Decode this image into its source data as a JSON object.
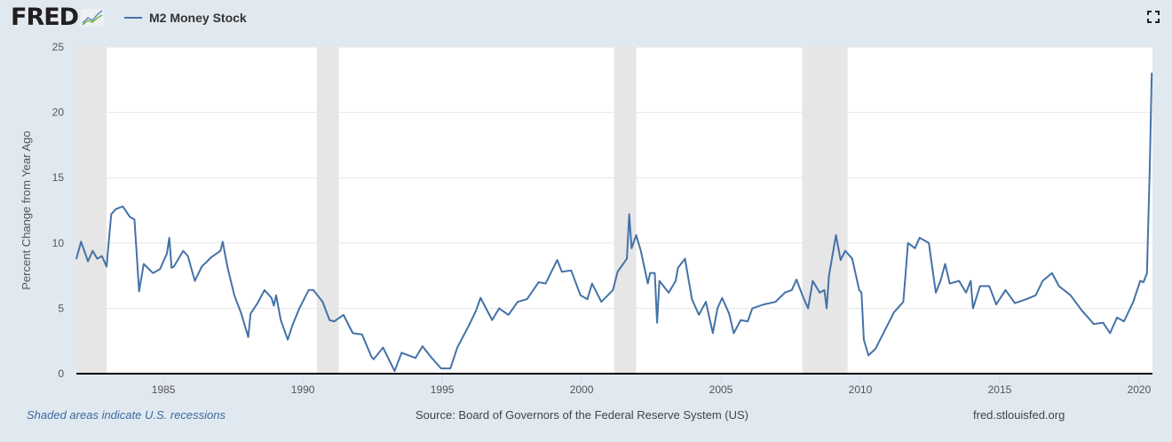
{
  "header": {
    "logo_text": "FRED",
    "logo_icon": "line-graph-icon",
    "fullscreen_icon": "fullscreen-icon"
  },
  "footer": {
    "recession_note": "Shaded areas indicate U.S. recessions",
    "source": "Source: Board of Governors of the Federal Reserve System (US)",
    "site": "fred.stlouisfed.org"
  },
  "chart_data": {
    "type": "line",
    "title": "",
    "xlabel": "",
    "ylabel": "Percent Change from Year Ago",
    "xlim": [
      "1981-11-16",
      "2020-06-24"
    ],
    "ylim": [
      0,
      25
    ],
    "x_ticks": [
      "1985",
      "1990",
      "1995",
      "2000",
      "2005",
      "2010",
      "2015",
      "2020"
    ],
    "y_ticks": [
      "0",
      "5",
      "10",
      "15",
      "20",
      "25"
    ],
    "grid": "horizontal",
    "legend_position": "top-left",
    "colors": {
      "line": "#4572a7",
      "recession": "#e6e6e6",
      "background": "#e1e9f0"
    },
    "recessions": [
      [
        "1981-07",
        "1982-11"
      ],
      [
        "1990-07",
        "1991-03"
      ],
      [
        "2001-03",
        "2001-11"
      ],
      [
        "2007-12",
        "2009-06"
      ]
    ],
    "series": [
      {
        "name": "M2 Money Stock",
        "points": [
          [
            "1981-11",
            8.8
          ],
          [
            "1982-01",
            10.1
          ],
          [
            "1982-04",
            8.6
          ],
          [
            "1982-06",
            9.4
          ],
          [
            "1982-08",
            8.8
          ],
          [
            "1982-10",
            9.0
          ],
          [
            "1982-12",
            8.2
          ],
          [
            "1983-02",
            12.2
          ],
          [
            "1983-04",
            12.6
          ],
          [
            "1983-07",
            12.8
          ],
          [
            "1983-10",
            12.0
          ],
          [
            "1983-12",
            11.8
          ],
          [
            "1984-01",
            9.1
          ],
          [
            "1984-02",
            6.3
          ],
          [
            "1984-04",
            8.4
          ],
          [
            "1984-08",
            7.7
          ],
          [
            "1984-11",
            8.0
          ],
          [
            "1985-02",
            9.2
          ],
          [
            "1985-03",
            10.4
          ],
          [
            "1985-04",
            8.1
          ],
          [
            "1985-05",
            8.2
          ],
          [
            "1985-09",
            9.4
          ],
          [
            "1985-11",
            9.0
          ],
          [
            "1986-02",
            7.1
          ],
          [
            "1986-05",
            8.2
          ],
          [
            "1986-09",
            8.9
          ],
          [
            "1987-01",
            9.4
          ],
          [
            "1987-02",
            10.1
          ],
          [
            "1987-04",
            8.2
          ],
          [
            "1987-07",
            6.0
          ],
          [
            "1987-10",
            4.6
          ],
          [
            "1988-01",
            2.8
          ],
          [
            "1988-02",
            4.6
          ],
          [
            "1988-05",
            5.4
          ],
          [
            "1988-08",
            6.4
          ],
          [
            "1988-11",
            5.8
          ],
          [
            "1988-12",
            5.2
          ],
          [
            "1989-01",
            6.0
          ],
          [
            "1989-03",
            4.1
          ],
          [
            "1989-06",
            2.6
          ],
          [
            "1989-08",
            3.7
          ],
          [
            "1989-11",
            5.0
          ],
          [
            "1990-03",
            6.4
          ],
          [
            "1990-05",
            6.4
          ],
          [
            "1990-09",
            5.5
          ],
          [
            "1990-12",
            4.1
          ],
          [
            "1991-02",
            4.0
          ],
          [
            "1991-06",
            4.5
          ],
          [
            "1991-10",
            3.1
          ],
          [
            "1992-02",
            3.0
          ],
          [
            "1992-06",
            1.3
          ],
          [
            "1992-07",
            1.1
          ],
          [
            "1992-11",
            2.0
          ],
          [
            "1993-04",
            0.2
          ],
          [
            "1993-07",
            1.6
          ],
          [
            "1994-01",
            1.2
          ],
          [
            "1994-04",
            2.1
          ],
          [
            "1994-08",
            1.2
          ],
          [
            "1994-12",
            0.4
          ],
          [
            "1995-04",
            0.4
          ],
          [
            "1995-07",
            2.0
          ],
          [
            "1995-12",
            3.7
          ],
          [
            "1996-03",
            4.8
          ],
          [
            "1996-05",
            5.8
          ],
          [
            "1996-10",
            4.1
          ],
          [
            "1997-01",
            5.0
          ],
          [
            "1997-05",
            4.5
          ],
          [
            "1997-09",
            5.5
          ],
          [
            "1998-01",
            5.7
          ],
          [
            "1998-06",
            7.0
          ],
          [
            "1998-09",
            6.9
          ],
          [
            "1999-02",
            8.7
          ],
          [
            "1999-04",
            7.8
          ],
          [
            "1999-08",
            7.9
          ],
          [
            "1999-12",
            6.0
          ],
          [
            "2000-03",
            5.7
          ],
          [
            "2000-05",
            6.9
          ],
          [
            "2000-09",
            5.5
          ],
          [
            "2001-02",
            6.4
          ],
          [
            "2001-04",
            7.8
          ],
          [
            "2001-08",
            8.8
          ],
          [
            "2001-09",
            12.2
          ],
          [
            "2001-10",
            9.6
          ],
          [
            "2001-12",
            10.6
          ],
          [
            "2002-02",
            9.4
          ],
          [
            "2002-05",
            6.9
          ],
          [
            "2002-06",
            7.7
          ],
          [
            "2002-08",
            7.7
          ],
          [
            "2002-09",
            3.9
          ],
          [
            "2002-10",
            7.1
          ],
          [
            "2003-02",
            6.2
          ],
          [
            "2003-05",
            7.1
          ],
          [
            "2003-06",
            8.1
          ],
          [
            "2003-09",
            8.8
          ],
          [
            "2003-12",
            5.7
          ],
          [
            "2004-03",
            4.5
          ],
          [
            "2004-06",
            5.5
          ],
          [
            "2004-09",
            3.1
          ],
          [
            "2004-11",
            5.0
          ],
          [
            "2005-01",
            5.8
          ],
          [
            "2005-04",
            4.6
          ],
          [
            "2005-06",
            3.1
          ],
          [
            "2005-09",
            4.1
          ],
          [
            "2005-12",
            4.0
          ],
          [
            "2006-02",
            5.0
          ],
          [
            "2006-07",
            5.3
          ],
          [
            "2006-12",
            5.5
          ],
          [
            "2007-04",
            6.2
          ],
          [
            "2007-07",
            6.4
          ],
          [
            "2007-09",
            7.2
          ],
          [
            "2007-12",
            5.8
          ],
          [
            "2008-02",
            5.0
          ],
          [
            "2008-04",
            7.1
          ],
          [
            "2008-07",
            6.2
          ],
          [
            "2008-09",
            6.4
          ],
          [
            "2008-10",
            5.0
          ],
          [
            "2008-11",
            7.5
          ],
          [
            "2009-02",
            10.6
          ],
          [
            "2009-04",
            8.7
          ],
          [
            "2009-06",
            9.4
          ],
          [
            "2009-09",
            8.8
          ],
          [
            "2009-12",
            6.4
          ],
          [
            "2010-01",
            6.2
          ],
          [
            "2010-02",
            2.6
          ],
          [
            "2010-04",
            1.4
          ],
          [
            "2010-07",
            1.9
          ],
          [
            "2010-11",
            3.3
          ],
          [
            "2011-03",
            4.7
          ],
          [
            "2011-07",
            5.5
          ],
          [
            "2011-08",
            7.7
          ],
          [
            "2011-09",
            10.0
          ],
          [
            "2011-12",
            9.6
          ],
          [
            "2012-02",
            10.4
          ],
          [
            "2012-06",
            10.0
          ],
          [
            "2012-07",
            8.7
          ],
          [
            "2012-09",
            6.2
          ],
          [
            "2012-11",
            7.1
          ],
          [
            "2013-01",
            8.4
          ],
          [
            "2013-03",
            6.9
          ],
          [
            "2013-07",
            7.1
          ],
          [
            "2013-10",
            6.2
          ],
          [
            "2013-12",
            7.1
          ],
          [
            "2014-01",
            5.0
          ],
          [
            "2014-04",
            6.7
          ],
          [
            "2014-08",
            6.7
          ],
          [
            "2014-11",
            5.3
          ],
          [
            "2015-03",
            6.4
          ],
          [
            "2015-07",
            5.4
          ],
          [
            "2015-12",
            5.7
          ],
          [
            "2016-04",
            6.0
          ],
          [
            "2016-07",
            7.1
          ],
          [
            "2016-11",
            7.7
          ],
          [
            "2017-02",
            6.7
          ],
          [
            "2017-07",
            6.0
          ],
          [
            "2017-12",
            4.8
          ],
          [
            "2018-05",
            3.8
          ],
          [
            "2018-09",
            3.9
          ],
          [
            "2018-12",
            3.1
          ],
          [
            "2019-03",
            4.3
          ],
          [
            "2019-06",
            4.0
          ],
          [
            "2019-10",
            5.5
          ],
          [
            "2020-01",
            7.1
          ],
          [
            "2020-02-28",
            7.0
          ],
          [
            "2020-04-13",
            7.7
          ],
          [
            "2020-04-27",
            10.9
          ],
          [
            "2020-05-18",
            15.5
          ],
          [
            "2020-06-15",
            23.0
          ]
        ]
      }
    ]
  }
}
